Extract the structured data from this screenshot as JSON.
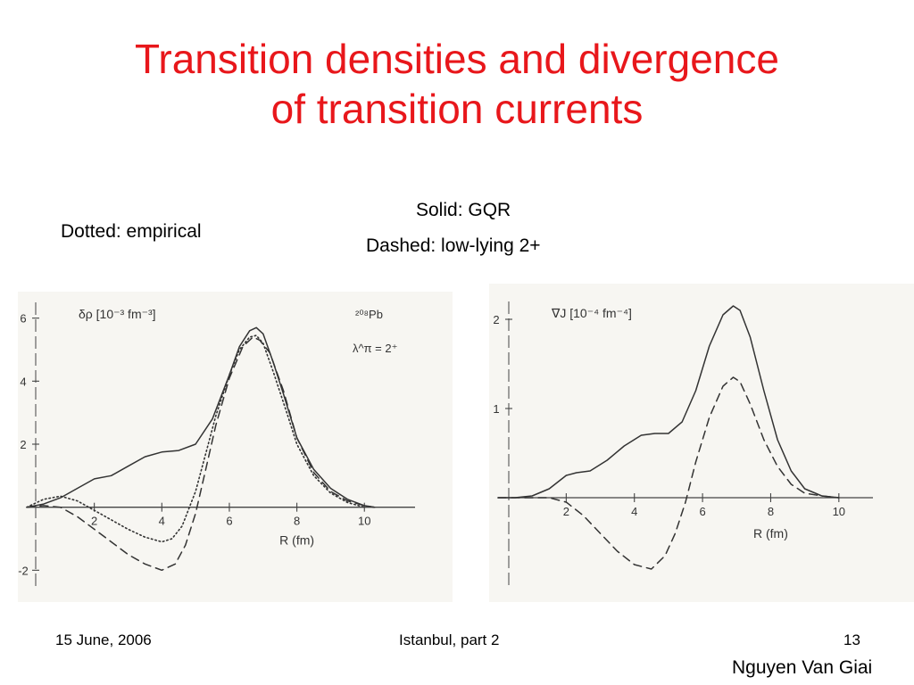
{
  "slide": {
    "title_line1": "Transition densities and divergence",
    "title_line2": "of transition currents",
    "legend_dotted": "Dotted: empirical",
    "legend_solid": "Solid: GQR",
    "legend_dashed": "Dashed: low-lying 2+",
    "footer_date": "15 June, 2006",
    "footer_center": "Istanbul, part 2",
    "footer_page": "13",
    "author": "Nguyen Van Giai",
    "colors": {
      "title": "#e8171b",
      "text": "#000000",
      "curves": "#333333"
    }
  },
  "chart_data": [
    {
      "type": "line",
      "ylabel": "δρ [10⁻³ fm⁻³]",
      "xlabel": "R (fm)",
      "annotation_nucleus": "²⁰⁸Pb",
      "annotation_state": "λ^π = 2⁺",
      "xlim": [
        0,
        11.5
      ],
      "ylim": [
        -2.5,
        6.5
      ],
      "xticks": [
        2,
        4,
        6,
        8,
        10
      ],
      "xtick_labels": [
        "2",
        "4",
        "6",
        "8",
        "10"
      ],
      "yticks": [
        -2,
        2,
        4,
        6
      ],
      "ytick_labels": [
        "-2",
        "2",
        "4",
        "6"
      ],
      "grid": false,
      "series": [
        {
          "style": "solid",
          "x": [
            0,
            0.5,
            1.0,
            1.5,
            2.0,
            2.5,
            3.0,
            3.5,
            4.0,
            4.5,
            5.0,
            5.5,
            6.0,
            6.3,
            6.6,
            6.8,
            7.0,
            7.3,
            7.6,
            8.0,
            8.5,
            9.0,
            9.5,
            10.0,
            10.3
          ],
          "y": [
            0,
            0.1,
            0.3,
            0.6,
            0.9,
            1.0,
            1.3,
            1.6,
            1.75,
            1.8,
            2.0,
            2.8,
            4.2,
            5.1,
            5.6,
            5.7,
            5.5,
            4.6,
            3.6,
            2.2,
            1.2,
            0.6,
            0.25,
            0.05,
            0
          ]
        },
        {
          "style": "dashed",
          "x": [
            0,
            0.5,
            1.0,
            1.5,
            2.0,
            2.5,
            3.0,
            3.5,
            4.0,
            4.4,
            4.7,
            5.0,
            5.3,
            5.6,
            6.0,
            6.4,
            6.7,
            6.9,
            7.2,
            7.6,
            8.0,
            8.5,
            9.0,
            9.5,
            10.0,
            10.3
          ],
          "y": [
            0,
            0.05,
            0.0,
            -0.3,
            -0.7,
            -1.1,
            -1.5,
            -1.8,
            -2.0,
            -1.8,
            -1.2,
            -0.2,
            1.2,
            2.6,
            4.1,
            5.1,
            5.4,
            5.3,
            4.9,
            3.7,
            2.2,
            1.1,
            0.5,
            0.2,
            0.05,
            0
          ]
        },
        {
          "style": "dotted",
          "x": [
            0,
            0.5,
            1.0,
            1.5,
            2.0,
            2.5,
            3.0,
            3.5,
            4.0,
            4.3,
            4.6,
            5.0,
            5.3,
            5.6,
            6.0,
            6.3,
            6.6,
            6.8,
            7.0,
            7.3,
            7.7,
            8.0,
            8.5,
            9.0,
            9.5,
            10.0
          ],
          "y": [
            0,
            0.25,
            0.35,
            0.2,
            -0.1,
            -0.4,
            -0.7,
            -0.95,
            -1.1,
            -1.0,
            -0.6,
            0.5,
            1.7,
            2.9,
            4.2,
            5.0,
            5.4,
            5.45,
            5.2,
            4.3,
            3.0,
            2.0,
            1.0,
            0.45,
            0.15,
            0
          ]
        }
      ]
    },
    {
      "type": "line",
      "ylabel": "∇J [10⁻⁴ fm⁻⁴]",
      "xlabel": "R (fm)",
      "xlim": [
        0,
        11
      ],
      "ylim": [
        -1.0,
        2.2
      ],
      "xticks": [
        2,
        4,
        6,
        8,
        10
      ],
      "xtick_labels": [
        "2",
        "4",
        "6",
        "8",
        "10"
      ],
      "yticks": [
        1,
        2
      ],
      "ytick_labels": [
        "1",
        "2"
      ],
      "grid": false,
      "series": [
        {
          "style": "solid",
          "x": [
            0,
            0.5,
            1.0,
            1.5,
            2.0,
            2.3,
            2.7,
            3.2,
            3.7,
            4.2,
            4.6,
            5.0,
            5.4,
            5.8,
            6.2,
            6.6,
            6.9,
            7.1,
            7.4,
            7.8,
            8.2,
            8.6,
            9.0,
            9.5,
            10.0
          ],
          "y": [
            0,
            0.0,
            0.02,
            0.1,
            0.25,
            0.28,
            0.3,
            0.42,
            0.58,
            0.7,
            0.72,
            0.72,
            0.85,
            1.2,
            1.7,
            2.05,
            2.15,
            2.1,
            1.8,
            1.2,
            0.65,
            0.3,
            0.1,
            0.02,
            0
          ]
        },
        {
          "style": "dashed",
          "x": [
            0,
            0.5,
            1.0,
            1.5,
            2.0,
            2.5,
            3.0,
            3.5,
            4.0,
            4.5,
            4.9,
            5.2,
            5.5,
            5.8,
            6.2,
            6.6,
            6.9,
            7.1,
            7.4,
            7.8,
            8.2,
            8.6,
            9.0,
            9.5,
            10.0
          ],
          "y": [
            0,
            0.0,
            0.0,
            0.0,
            -0.05,
            -0.2,
            -0.4,
            -0.6,
            -0.75,
            -0.8,
            -0.65,
            -0.4,
            -0.05,
            0.4,
            0.9,
            1.25,
            1.35,
            1.3,
            1.05,
            0.65,
            0.35,
            0.15,
            0.05,
            0.02,
            0
          ]
        }
      ]
    }
  ]
}
